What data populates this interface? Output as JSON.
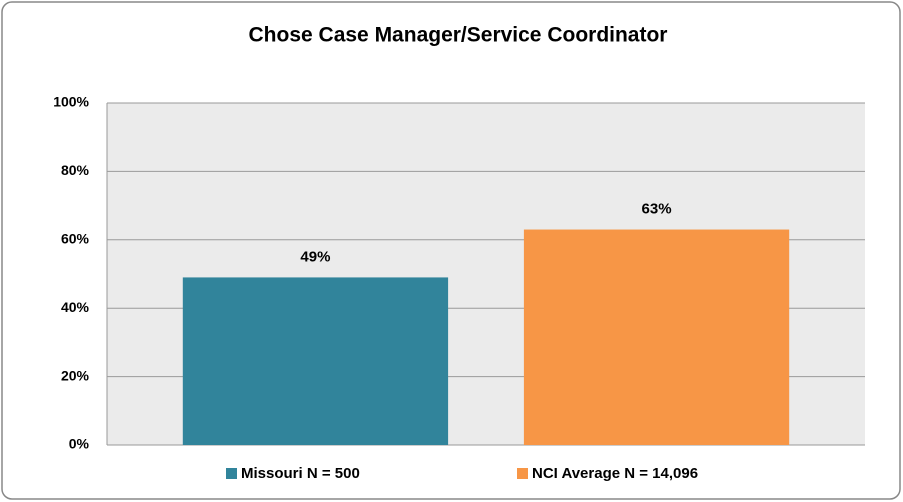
{
  "chart_data": {
    "type": "bar",
    "title": "Chose Case Manager/Service Coordinator",
    "categories": [
      null
    ],
    "series": [
      {
        "name": "Missouri N = 500",
        "color": "#31849b",
        "values": [
          49
        ],
        "value_labels": [
          "49%"
        ]
      },
      {
        "name": "NCI Average N = 14,096",
        "color": "#f79646",
        "values": [
          63
        ],
        "value_labels": [
          "63%"
        ]
      }
    ],
    "ylim": [
      0,
      100
    ],
    "yticks": [
      {
        "value": 0,
        "label": "0%"
      },
      {
        "value": 20,
        "label": "20%"
      },
      {
        "value": 40,
        "label": "40%"
      },
      {
        "value": 60,
        "label": "60%"
      },
      {
        "value": 80,
        "label": "80%"
      },
      {
        "value": 100,
        "label": "100%"
      }
    ],
    "grid": true,
    "legend": "bottom"
  }
}
